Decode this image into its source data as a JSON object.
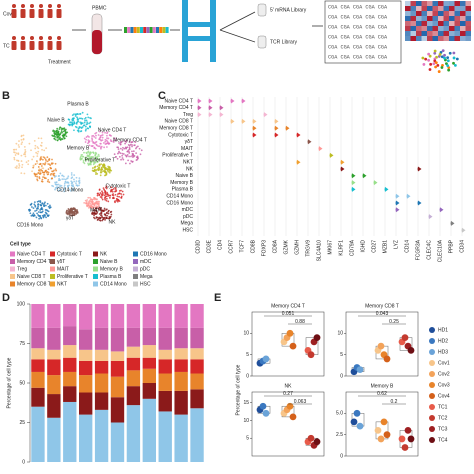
{
  "panels": {
    "b": "B",
    "c": "C",
    "d": "D",
    "e": "E"
  },
  "panel_a": {
    "cov": "Cov",
    "tc": "TC",
    "treatment": "Treatment",
    "pbmc": "PBMC",
    "mrna": "5' mRNA Library",
    "tcr": "TCR Library",
    "sequence": [
      "CGA CGA CGA CGA CGA",
      "CGA CGA CGA CGA CGA",
      "CGA CGA CGA CGA CGA",
      "CGA CGA CGA CGA CGA",
      "CGA CGA CGA CGA CGA",
      "CGA CGA CGA CGA CGA"
    ]
  },
  "panel_b": {
    "clusters": [
      "Plasma B",
      "Naive B",
      "Naive CD4 T",
      "Memory CD4 T",
      "Memory B",
      "Proliferative T",
      "CD14 Mono",
      "Cytotoxic T",
      "CD16 Mono",
      "MAIT",
      "γδT",
      "NK"
    ],
    "legend_title": "Cell type",
    "legend": [
      {
        "name": "Naive CD4 T",
        "color": "#e377c2"
      },
      {
        "name": "Memory CD4 T",
        "color": "#c85fa8"
      },
      {
        "name": "Treg",
        "color": "#f4b6d2"
      },
      {
        "name": "Naive CD8 T",
        "color": "#f7c58a"
      },
      {
        "name": "Memory CD8 T",
        "color": "#e8842b"
      },
      {
        "name": "Cytotoxic T",
        "color": "#d62728"
      },
      {
        "name": "γδT",
        "color": "#8c564b"
      },
      {
        "name": "MAIT",
        "color": "#ff9896"
      },
      {
        "name": "Proliferative T",
        "color": "#bcbd22"
      },
      {
        "name": "NKT",
        "color": "#f0a030"
      },
      {
        "name": "NK",
        "color": "#8b1a1a"
      },
      {
        "name": "Naive B",
        "color": "#2ca02c"
      },
      {
        "name": "Memory B",
        "color": "#98df8a"
      },
      {
        "name": "Plasma B",
        "color": "#17becf"
      },
      {
        "name": "CD14 Mono",
        "color": "#8fc6e8"
      },
      {
        "name": "CD16 Mono",
        "color": "#1f77b4"
      },
      {
        "name": "mDC",
        "color": "#9467bd"
      },
      {
        "name": "pDC",
        "color": "#c5b0d5"
      },
      {
        "name": "Mega",
        "color": "#7f7f7f"
      },
      {
        "name": "HSC",
        "color": "#c7c7c7"
      }
    ]
  },
  "panel_c": {
    "cell_types": [
      "Naive CD4 T",
      "Memory CD4 T",
      "Treg",
      "Naive CD8 T",
      "Memory CD8 T",
      "Cytotoxic T",
      "γδT",
      "MAIT",
      "Proliferative T",
      "NKT",
      "NK",
      "Naive B",
      "Memory B",
      "Plasma B",
      "CD14 Mono",
      "CD16 Mono",
      "mDC",
      "pDC",
      "Mega",
      "HSC"
    ],
    "genes": [
      "CD3D",
      "CD3E",
      "CD4",
      "CCR7",
      "TCF7",
      "CD8B",
      "FOXP3",
      "CD8A",
      "GZMK",
      "GZMH",
      "TRGV9",
      "SLC4A10",
      "MKI67",
      "KLRF1",
      "CD79A",
      "IGHD",
      "CD27",
      "MZB1",
      "LYZ",
      "CD14",
      "FCGR3A",
      "CLEC4C",
      "CLEC10A",
      "PPBP",
      "CD34"
    ]
  },
  "chart_data": [
    {
      "type": "stacked_bar",
      "y_label": "Percentage of cell type",
      "ylim": [
        0,
        100
      ],
      "yticks": [
        0,
        25,
        50,
        75,
        100
      ],
      "categories": [
        null,
        null,
        null,
        null,
        null,
        null,
        null,
        null,
        null,
        null,
        null
      ],
      "series": [
        {
          "name": "CD14 Mono",
          "color": "#8fc6e8",
          "values": [
            35,
            28,
            38,
            30,
            33,
            25,
            36,
            40,
            32,
            30,
            34
          ]
        },
        {
          "name": "NK",
          "color": "#8b1a1a",
          "values": [
            12,
            15,
            10,
            14,
            11,
            16,
            12,
            10,
            13,
            15,
            12
          ]
        },
        {
          "name": "Memory CD8 T",
          "color": "#e8842b",
          "values": [
            10,
            12,
            9,
            11,
            12,
            13,
            10,
            9,
            11,
            12,
            10
          ]
        },
        {
          "name": "Cytotoxic T",
          "color": "#d62728",
          "values": [
            8,
            10,
            9,
            9,
            8,
            10,
            8,
            7,
            9,
            8,
            9
          ]
        },
        {
          "name": "Naive CD8 T",
          "color": "#f7c58a",
          "values": [
            7,
            6,
            8,
            7,
            7,
            6,
            7,
            8,
            6,
            7,
            7
          ]
        },
        {
          "name": "Memory CD4 T",
          "color": "#c85fa8",
          "values": [
            13,
            14,
            12,
            13,
            14,
            15,
            12,
            11,
            14,
            13,
            13
          ]
        },
        {
          "name": "Naive CD4 T",
          "color": "#e377c2",
          "values": [
            15,
            15,
            14,
            16,
            15,
            15,
            15,
            15,
            15,
            15,
            15
          ]
        }
      ]
    },
    {
      "type": "dot_box",
      "title": "Memory CD4 T",
      "ylim": [
        0,
        15
      ],
      "yticks": [
        0,
        5,
        10
      ],
      "values": [
        3,
        3.5,
        4,
        8,
        9,
        10,
        7,
        6,
        5,
        8,
        9
      ],
      "p_values": [
        "0.051",
        "0.88"
      ]
    },
    {
      "type": "dot_box",
      "title": "Memory CD8 T",
      "ylim": [
        0,
        15
      ],
      "yticks": [
        0,
        5,
        10
      ],
      "values": [
        1,
        2,
        1.5,
        6,
        7,
        5,
        4,
        8,
        9,
        7,
        6
      ],
      "p_values": [
        "0.043",
        "0.25"
      ]
    },
    {
      "type": "dot_box",
      "title": "NK",
      "ylim": [
        0,
        18
      ],
      "yticks": [
        5,
        10,
        15
      ],
      "values": [
        13,
        14,
        12,
        12,
        13,
        14,
        11,
        4,
        5,
        3,
        4
      ],
      "p_values": [
        "0.27",
        "0.063"
      ]
    },
    {
      "type": "dot_box",
      "title": "Memory B",
      "ylim": [
        0,
        7.5
      ],
      "yticks": [
        0,
        {
          "value": 2.5,
          "label": "2.5"
        },
        {
          "value": 5,
          "label": "5.0"
        }
      ],
      "values": [
        4,
        5,
        3.5,
        3,
        2,
        4,
        2.5,
        2,
        1,
        3,
        2
      ],
      "p_values": [
        "0.62",
        "0.2"
      ]
    }
  ],
  "panel_e": {
    "y_label": "Percentage of cell type",
    "samples": [
      {
        "name": "HD1",
        "color": "#1f4e9a"
      },
      {
        "name": "HD2",
        "color": "#3a78c0"
      },
      {
        "name": "HD3",
        "color": "#6aa3d8"
      },
      {
        "name": "Cov1",
        "color": "#f7c58a"
      },
      {
        "name": "Cov2",
        "color": "#f3a35a"
      },
      {
        "name": "Cov3",
        "color": "#e8842b"
      },
      {
        "name": "Cov4",
        "color": "#d4601a"
      },
      {
        "name": "TC1",
        "color": "#e85b4a"
      },
      {
        "name": "TC2",
        "color": "#c43a2f"
      },
      {
        "name": "TC3",
        "color": "#9e2022"
      },
      {
        "name": "TC4",
        "color": "#6e0f14"
      }
    ]
  }
}
